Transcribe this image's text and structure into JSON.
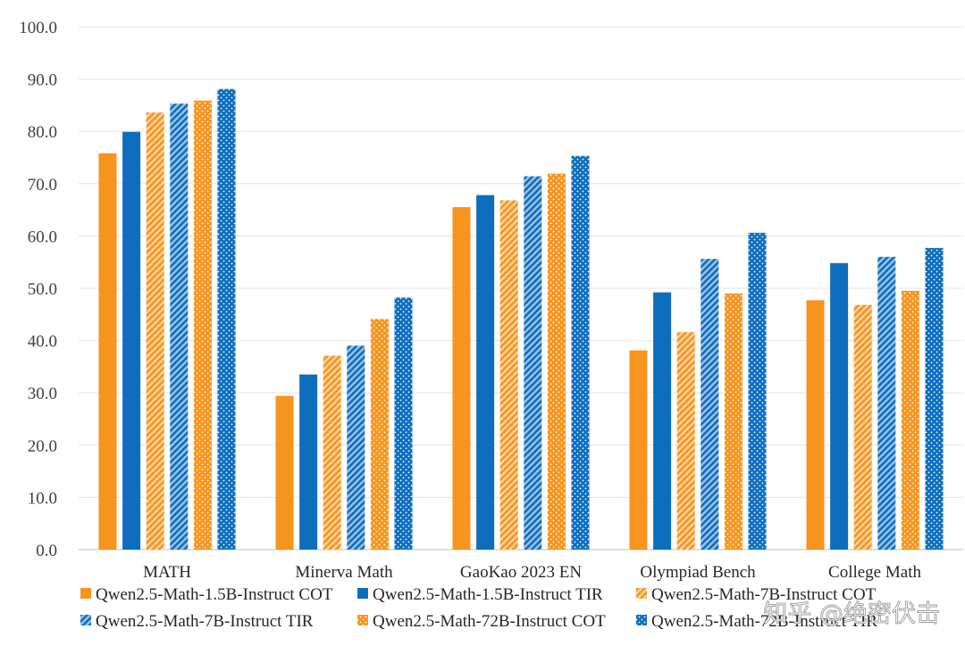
{
  "chart_data": {
    "type": "bar",
    "title": "",
    "xlabel": "",
    "ylabel": "",
    "ylim": [
      0,
      100
    ],
    "yticks": [
      "0.0",
      "10.0",
      "20.0",
      "30.0",
      "40.0",
      "50.0",
      "60.0",
      "70.0",
      "80.0",
      "90.0",
      "100.0"
    ],
    "grid": true,
    "legend_position": "bottom",
    "categories": [
      "MATH",
      "Minerva Math",
      "GaoKao 2023 EN",
      "Olympiad Bench",
      "College Math"
    ],
    "series": [
      {
        "name": "Qwen2.5-Math-1.5B-Instruct COT",
        "color": "#f7941d",
        "pattern": "solid",
        "values": [
          75.8,
          29.4,
          65.5,
          38.1,
          47.7
        ]
      },
      {
        "name": "Qwen2.5-Math-1.5B-Instruct TIR",
        "color": "#0e6ebe",
        "pattern": "solid",
        "values": [
          79.9,
          33.5,
          67.8,
          49.2,
          54.8
        ]
      },
      {
        "name": "Qwen2.5-Math-7B-Instruct COT",
        "color": "#f7941d",
        "pattern": "diagonal-hatch",
        "values": [
          83.6,
          37.1,
          66.8,
          41.6,
          46.8
        ]
      },
      {
        "name": "Qwen2.5-Math-7B-Instruct TIR",
        "color": "#0e6ebe",
        "pattern": "diagonal-hatch",
        "values": [
          85.3,
          39.0,
          71.4,
          55.6,
          56.0
        ]
      },
      {
        "name": "Qwen2.5-Math-72B-Instruct COT",
        "color": "#f7941d",
        "pattern": "dots",
        "values": [
          85.9,
          44.1,
          71.9,
          49.0,
          49.5
        ]
      },
      {
        "name": "Qwen2.5-Math-72B-Instruct TIR",
        "color": "#0e6ebe",
        "pattern": "dots",
        "values": [
          88.1,
          48.2,
          75.3,
          60.6,
          57.7
        ]
      }
    ]
  },
  "watermark": "知乎 @绝密伏击"
}
